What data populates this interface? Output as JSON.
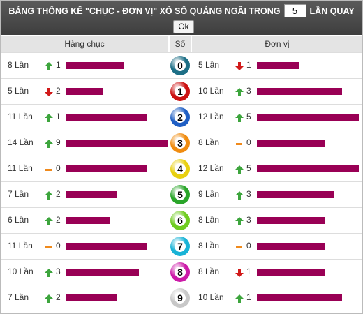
{
  "header": {
    "title": "BẢNG THỐNG KÊ \"CHỤC - ĐƠN VỊ\" XỔ SỐ QUẢNG NGÃI TRONG",
    "input_value": "5",
    "suffix": "LẦN QUAY",
    "button": "Ok"
  },
  "columns": {
    "left": "Hàng chục",
    "middle": "Số",
    "right": "Đơn vị"
  },
  "bar_color": "#990055",
  "trend_colors": {
    "up": "#3da53d",
    "down": "#d11a1a",
    "flat": "#f08a1c"
  },
  "rows": [
    {
      "digit": "0",
      "ball_color": "#1d6f86",
      "left": {
        "count": 8,
        "count_label": "8 Lần",
        "trend": "up",
        "change": 1
      },
      "right": {
        "count": 5,
        "count_label": "5 Lần",
        "trend": "down",
        "change": 1
      }
    },
    {
      "digit": "1",
      "ball_color": "#cc1111",
      "left": {
        "count": 5,
        "count_label": "5 Lần",
        "trend": "down",
        "change": 2
      },
      "right": {
        "count": 10,
        "count_label": "10 Lần",
        "trend": "up",
        "change": 3
      }
    },
    {
      "digit": "2",
      "ball_color": "#1f5fc4",
      "left": {
        "count": 11,
        "count_label": "11 Lần",
        "trend": "up",
        "change": 1
      },
      "right": {
        "count": 12,
        "count_label": "12 Lần",
        "trend": "up",
        "change": 5
      }
    },
    {
      "digit": "3",
      "ball_color": "#f08c10",
      "left": {
        "count": 14,
        "count_label": "14 Lần",
        "trend": "up",
        "change": 9
      },
      "right": {
        "count": 8,
        "count_label": "8 Lần",
        "trend": "flat",
        "change": 0
      }
    },
    {
      "digit": "4",
      "ball_color": "#e8d010",
      "left": {
        "count": 11,
        "count_label": "11 Lần",
        "trend": "flat",
        "change": 0
      },
      "right": {
        "count": 12,
        "count_label": "12 Lần",
        "trend": "up",
        "change": 5
      }
    },
    {
      "digit": "5",
      "ball_color": "#2aa52a",
      "left": {
        "count": 7,
        "count_label": "7 Lần",
        "trend": "up",
        "change": 2
      },
      "right": {
        "count": 9,
        "count_label": "9 Lần",
        "trend": "up",
        "change": 3
      }
    },
    {
      "digit": "6",
      "ball_color": "#6fcc20",
      "left": {
        "count": 6,
        "count_label": "6 Lần",
        "trend": "up",
        "change": 2
      },
      "right": {
        "count": 8,
        "count_label": "8 Lần",
        "trend": "up",
        "change": 3
      }
    },
    {
      "digit": "7",
      "ball_color": "#19b3d6",
      "left": {
        "count": 11,
        "count_label": "11 Lần",
        "trend": "flat",
        "change": 0
      },
      "right": {
        "count": 8,
        "count_label": "8 Lần",
        "trend": "flat",
        "change": 0
      }
    },
    {
      "digit": "8",
      "ball_color": "#cc1aa8",
      "left": {
        "count": 10,
        "count_label": "10 Lần",
        "trend": "up",
        "change": 3
      },
      "right": {
        "count": 8,
        "count_label": "8 Lần",
        "trend": "down",
        "change": 1
      }
    },
    {
      "digit": "9",
      "ball_color": "#c8c8c8",
      "left": {
        "count": 7,
        "count_label": "7 Lần",
        "trend": "up",
        "change": 2
      },
      "right": {
        "count": 10,
        "count_label": "10 Lần",
        "trend": "up",
        "change": 1
      }
    }
  ]
}
